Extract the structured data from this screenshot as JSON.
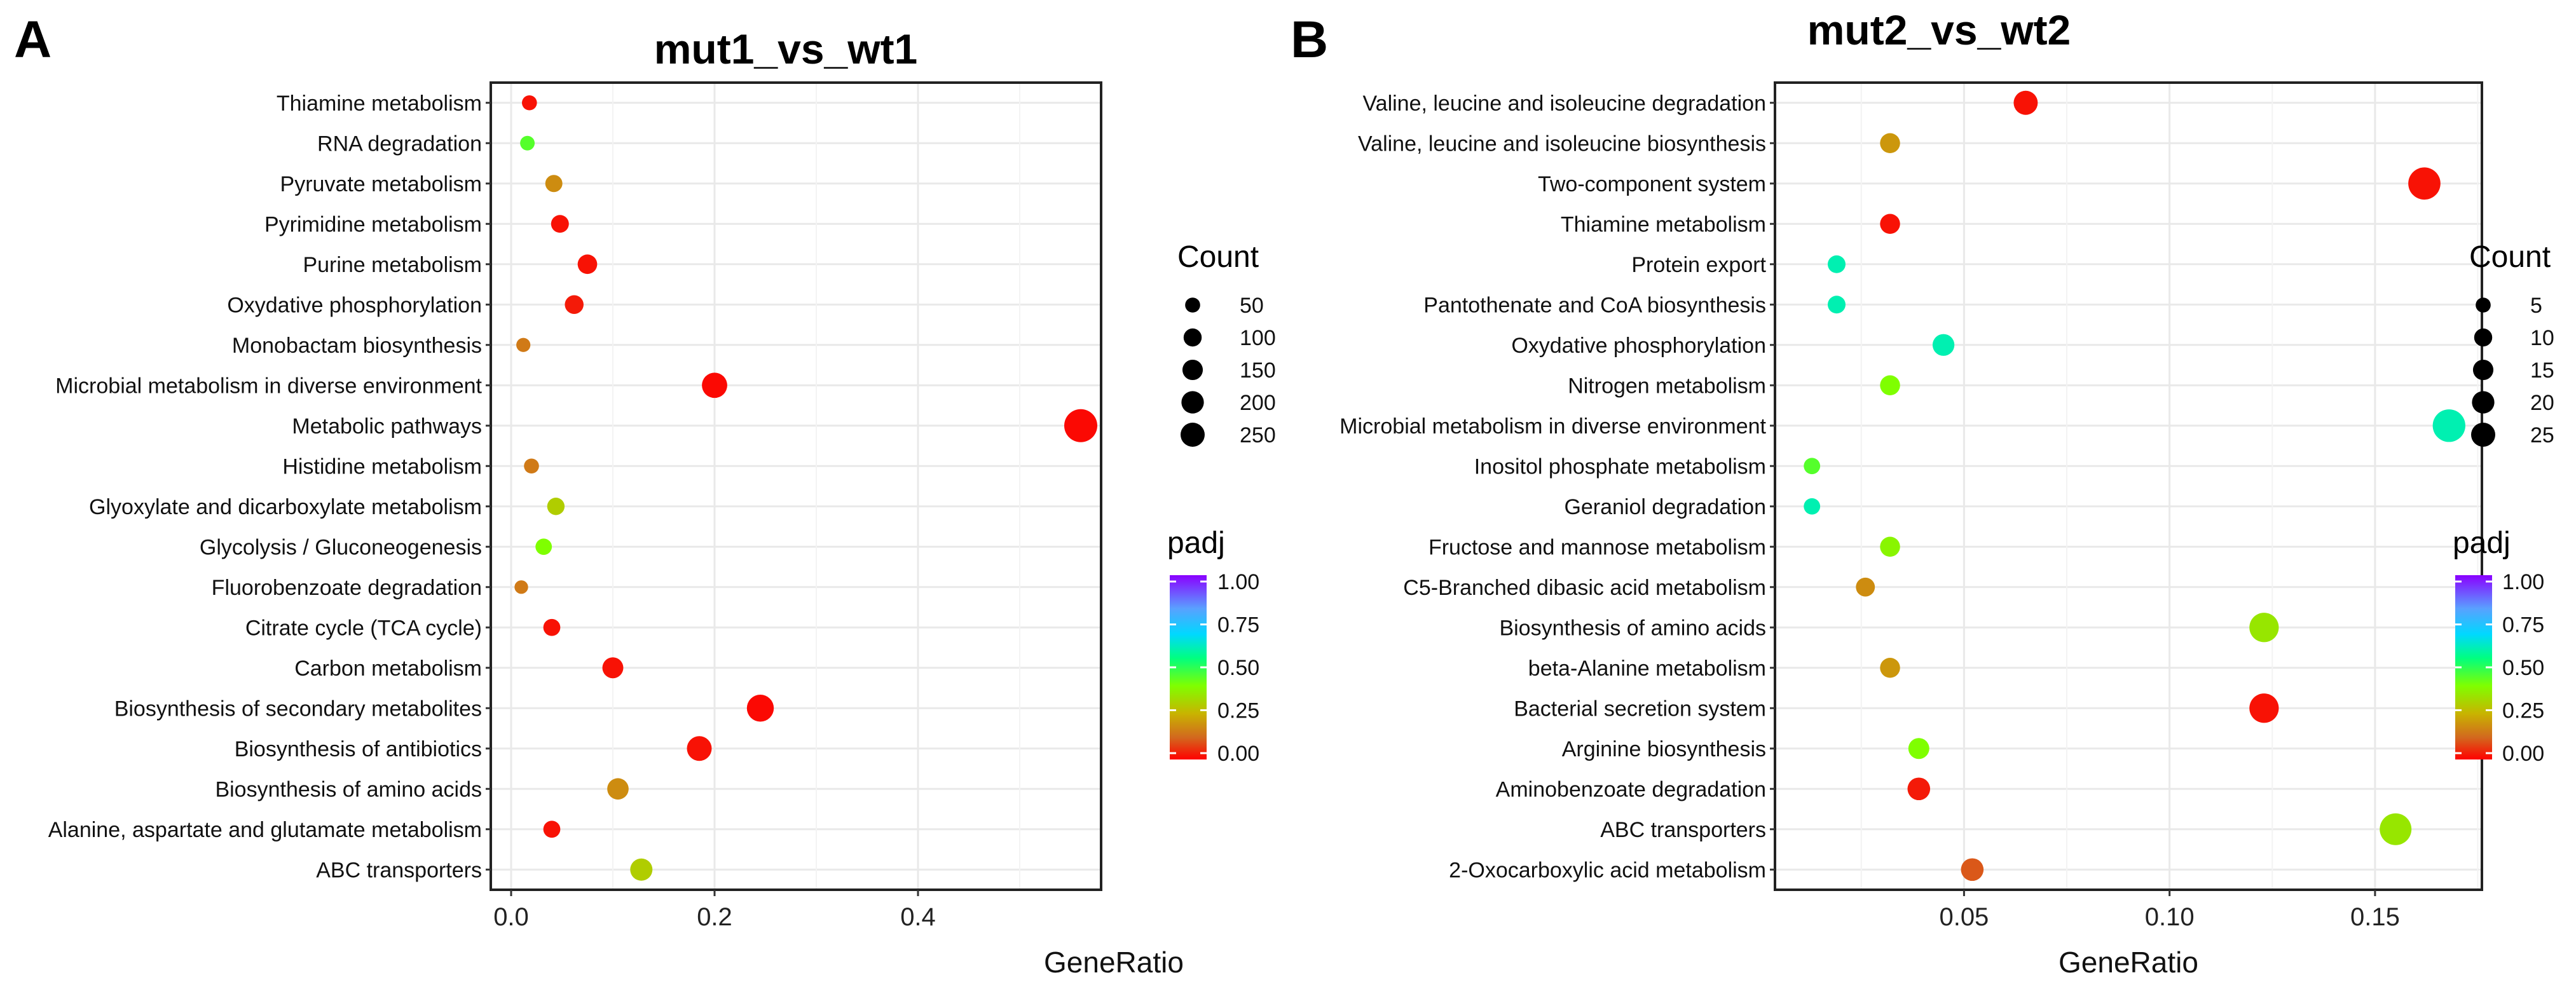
{
  "chart_data": [
    {
      "panel_label": "A",
      "type": "scatter",
      "title": "mut1_vs_wt1",
      "xlabel": "GeneRatio",
      "ylabel": "",
      "xlim": [
        -0.02,
        0.58
      ],
      "x_ticks": [
        0.0,
        0.2,
        0.4
      ],
      "x_tick_labels": [
        "0.0",
        "0.2",
        "0.4"
      ],
      "grid": true,
      "categories": [
        "Thiamine metabolism",
        "RNA degradation",
        "Pyruvate metabolism",
        "Pyrimidine metabolism",
        "Purine metabolism",
        "Oxydative phosphorylation",
        "Monobactam biosynthesis",
        "Microbial metabolism in diverse environment",
        "Metabolic pathways",
        "Histidine metabolism",
        "Glyoxylate and dicarboxylate metabolism",
        "Glycolysis / Gluconeogenesis",
        "Fluorobenzoate degradation",
        "Citrate cycle (TCA cycle)",
        "Carbon metabolism",
        "Biosynthesis of secondary metabolites",
        "Biosynthesis of antibiotics",
        "Biosynthesis of amino acids",
        "Alanine, aspartate and glutamate metabolism",
        "ABC transporters"
      ],
      "points": [
        {
          "category": "Thiamine metabolism",
          "x": 0.018,
          "count": 12,
          "padj": 0.02
        },
        {
          "category": "RNA degradation",
          "x": 0.016,
          "count": 10,
          "padj": 0.45
        },
        {
          "category": "Pyruvate metabolism",
          "x": 0.042,
          "count": 25,
          "padj": 0.18
        },
        {
          "category": "Pyrimidine metabolism",
          "x": 0.048,
          "count": 30,
          "padj": 0.02
        },
        {
          "category": "Purine metabolism",
          "x": 0.075,
          "count": 45,
          "padj": 0.02
        },
        {
          "category": "Oxydative phosphorylation",
          "x": 0.062,
          "count": 38,
          "padj": 0.03
        },
        {
          "category": "Monobactam biosynthesis",
          "x": 0.012,
          "count": 8,
          "padj": 0.15
        },
        {
          "category": "Microbial metabolism in diverse environment",
          "x": 0.2,
          "count": 118,
          "padj": 0.01
        },
        {
          "category": "Metabolic pathways",
          "x": 0.56,
          "count": 270,
          "padj": 0.01
        },
        {
          "category": "Histidine metabolism",
          "x": 0.02,
          "count": 12,
          "padj": 0.15
        },
        {
          "category": "Glyoxylate and dicarboxylate metabolism",
          "x": 0.044,
          "count": 27,
          "padj": 0.3
        },
        {
          "category": "Glycolysis / Gluconeogenesis",
          "x": 0.032,
          "count": 20,
          "padj": 0.4
        },
        {
          "category": "Fluorobenzoate degradation",
          "x": 0.01,
          "count": 6,
          "padj": 0.15
        },
        {
          "category": "Citrate cycle (TCA cycle)",
          "x": 0.04,
          "count": 24,
          "padj": 0.02
        },
        {
          "category": "Carbon metabolism",
          "x": 0.1,
          "count": 60,
          "padj": 0.02
        },
        {
          "category": "Biosynthesis of secondary metabolites",
          "x": 0.245,
          "count": 145,
          "padj": 0.01
        },
        {
          "category": "Biosynthesis of antibiotics",
          "x": 0.185,
          "count": 110,
          "padj": 0.02
        },
        {
          "category": "Biosynthesis of amino acids",
          "x": 0.105,
          "count": 65,
          "padj": 0.18
        },
        {
          "category": "Alanine, aspartate and glutamate metabolism",
          "x": 0.04,
          "count": 24,
          "padj": 0.02
        },
        {
          "category": "ABC transporters",
          "x": 0.128,
          "count": 75,
          "padj": 0.3
        }
      ],
      "legend_count": {
        "title": "Count",
        "values": [
          50,
          100,
          150,
          200,
          250
        ],
        "labels": [
          "50",
          "100",
          "150",
          "200",
          "250"
        ]
      },
      "legend_padj": {
        "title": "padj",
        "labels": [
          "1.00",
          "0.75",
          "0.50",
          "0.25",
          "0.00"
        ]
      }
    },
    {
      "panel_label": "B",
      "type": "scatter",
      "title": "mut2_vs_wt2",
      "xlabel": "GeneRatio",
      "ylabel": "",
      "xlim": [
        0.004,
        0.176
      ],
      "x_ticks": [
        0.05,
        0.1,
        0.15
      ],
      "x_tick_labels": [
        "0.05",
        "0.10",
        "0.15"
      ],
      "grid": true,
      "categories": [
        "Valine, leucine and isoleucine degradation",
        "Valine, leucine and isoleucine biosynthesis",
        "Two-component system",
        "Thiamine metabolism",
        "Protein export",
        "Pantothenate and CoA biosynthesis",
        "Oxydative phosphorylation",
        "Nitrogen metabolism",
        "Microbial metabolism in diverse environment",
        "Inositol phosphate metabolism",
        "Geraniol degradation",
        "Fructose and mannose metabolism",
        "C5-Branched dibasic acid metabolism",
        "Biosynthesis of amino acids",
        "beta-Alanine metabolism",
        "Bacterial secretion system",
        "Arginine biosynthesis",
        "Aminobenzoate degradation",
        "ABC transporters",
        "2-Oxocarboxylic acid metabolism"
      ],
      "points": [
        {
          "category": "Valine, leucine and isoleucine degradation",
          "x": 0.065,
          "count": 10,
          "padj": 0.02
        },
        {
          "category": "Valine, leucine and isoleucine biosynthesis",
          "x": 0.032,
          "count": 5,
          "padj": 0.2
        },
        {
          "category": "Two-component system",
          "x": 0.162,
          "count": 25,
          "padj": 0.02
        },
        {
          "category": "Thiamine metabolism",
          "x": 0.032,
          "count": 5,
          "padj": 0.02
        },
        {
          "category": "Protein export",
          "x": 0.019,
          "count": 3,
          "padj": 0.6
        },
        {
          "category": "Pantothenate and CoA biosynthesis",
          "x": 0.019,
          "count": 3,
          "padj": 0.6
        },
        {
          "category": "Oxydative phosphorylation",
          "x": 0.045,
          "count": 7,
          "padj": 0.6
        },
        {
          "category": "Nitrogen metabolism",
          "x": 0.032,
          "count": 5,
          "padj": 0.4
        },
        {
          "category": "Microbial metabolism in diverse environment",
          "x": 0.168,
          "count": 26,
          "padj": 0.6
        },
        {
          "category": "Inositol phosphate metabolism",
          "x": 0.013,
          "count": 2,
          "padj": 0.45
        },
        {
          "category": "Geraniol degradation",
          "x": 0.013,
          "count": 2,
          "padj": 0.6
        },
        {
          "category": "Fructose and mannose metabolism",
          "x": 0.032,
          "count": 5,
          "padj": 0.38
        },
        {
          "category": "C5-Branched dibasic acid metabolism",
          "x": 0.026,
          "count": 4,
          "padj": 0.18
        },
        {
          "category": "Biosynthesis of amino acids",
          "x": 0.123,
          "count": 19,
          "padj": 0.35
        },
        {
          "category": "beta-Alanine metabolism",
          "x": 0.032,
          "count": 5,
          "padj": 0.2
        },
        {
          "category": "Bacterial secretion system",
          "x": 0.123,
          "count": 19,
          "padj": 0.02
        },
        {
          "category": "Arginine biosynthesis",
          "x": 0.039,
          "count": 6,
          "padj": 0.4
        },
        {
          "category": "Aminobenzoate degradation",
          "x": 0.039,
          "count": 8,
          "padj": 0.03
        },
        {
          "category": "ABC transporters",
          "x": 0.155,
          "count": 24,
          "padj": 0.35
        },
        {
          "category": "2-Oxocarboxylic acid metabolism",
          "x": 0.052,
          "count": 8,
          "padj": 0.1
        }
      ],
      "legend_count": {
        "title": "Count",
        "values": [
          5,
          10,
          15,
          20,
          25
        ],
        "labels": [
          "5",
          "10",
          "15",
          "20",
          "25"
        ]
      },
      "legend_padj": {
        "title": "padj",
        "labels": [
          "1.00",
          "0.75",
          "0.50",
          "0.25",
          "0.00"
        ]
      }
    }
  ]
}
